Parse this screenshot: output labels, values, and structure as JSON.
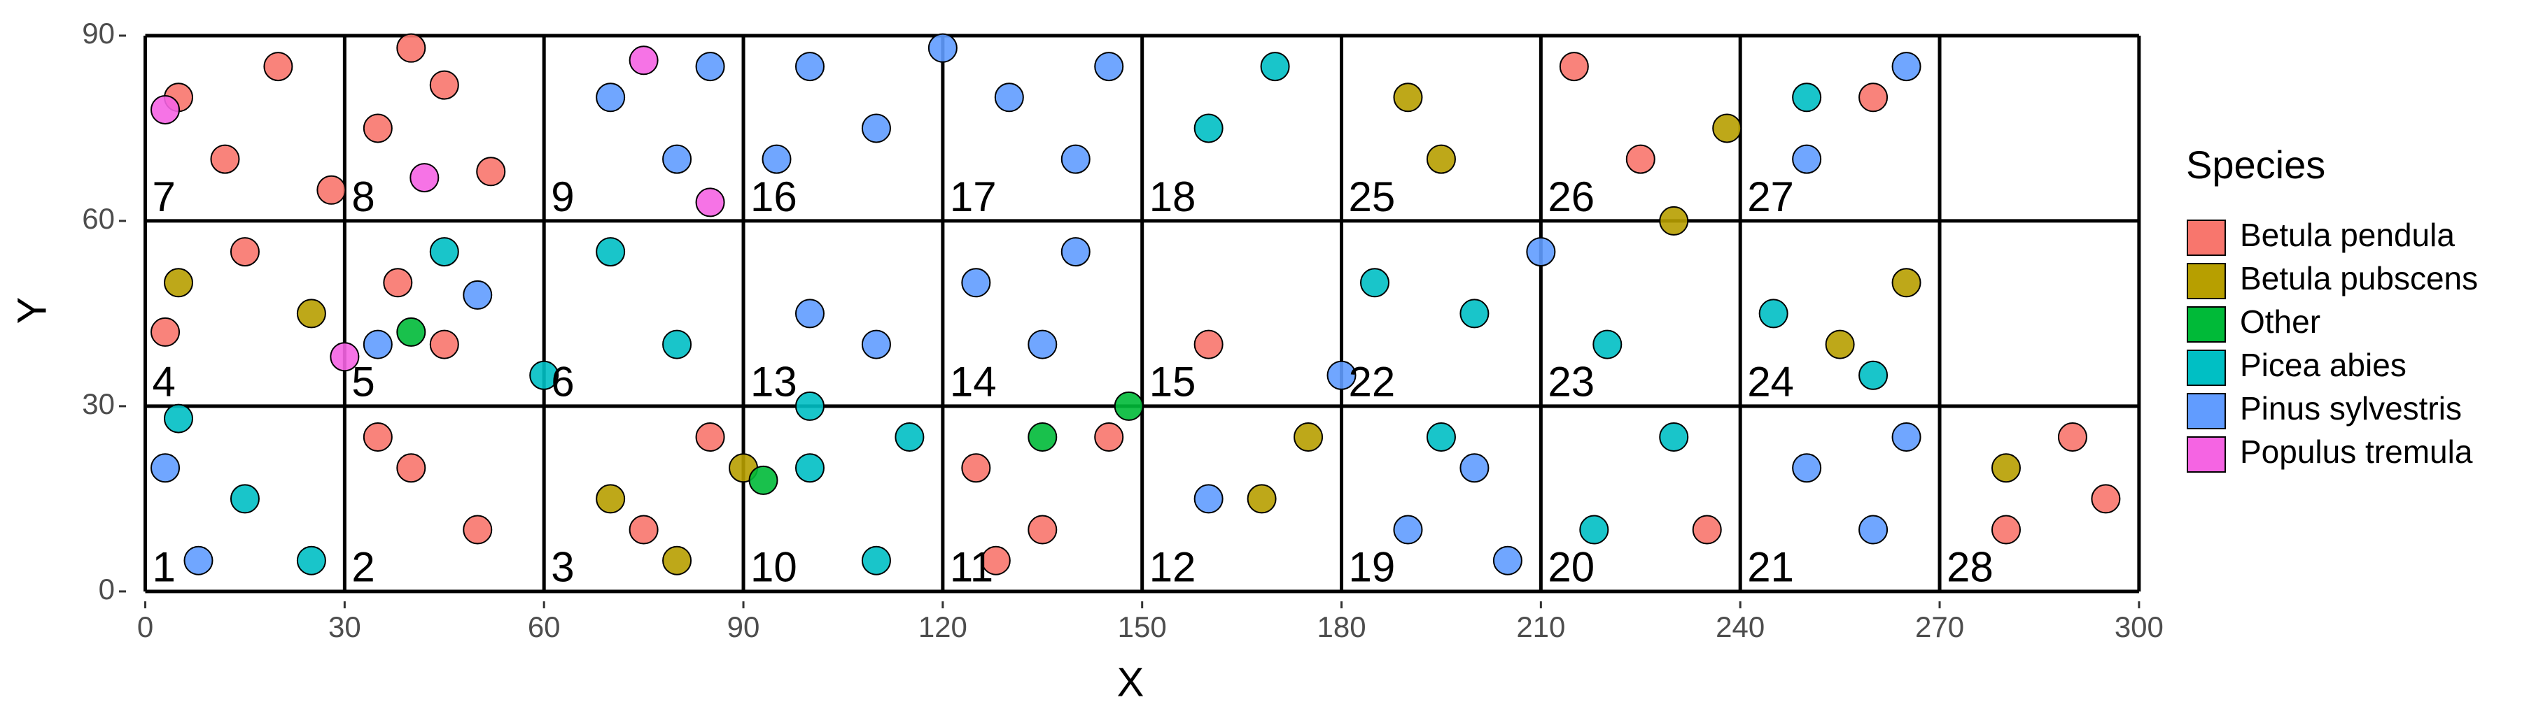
{
  "chart_data": {
    "type": "scatter",
    "x_label": "X",
    "y_label": "Y",
    "legend_title": "Species",
    "legend_position": "right",
    "grid": true,
    "grid_color": "#000000",
    "xlim": [
      -2.9,
      301.7
    ],
    "ylim": [
      -1.6,
      92.6
    ],
    "xticks": [
      0,
      30,
      60,
      90,
      120,
      150,
      180,
      210,
      240,
      270,
      300
    ],
    "yticks": [
      0,
      30,
      60,
      90
    ],
    "series": [
      {
        "name": "Betula pendula",
        "color": "#F8766D",
        "x": [
          5,
          12,
          20,
          28,
          35,
          45,
          52,
          40,
          15,
          3,
          38,
          45,
          40,
          50,
          35,
          75,
          85,
          125,
          135,
          145,
          128,
          280,
          290,
          295,
          215,
          225,
          260,
          235,
          160
        ],
        "y": [
          80,
          70,
          85,
          65,
          75,
          82,
          68,
          88,
          55,
          42,
          50,
          40,
          20,
          10,
          25,
          10,
          25,
          20,
          10,
          25,
          5,
          10,
          25,
          15,
          85,
          70,
          80,
          10,
          40
        ]
      },
      {
        "name": "Betula pubscens",
        "color": "#B79F00",
        "x": [
          190,
          195,
          230,
          265,
          255,
          168,
          175,
          70,
          80,
          90,
          25,
          5,
          280,
          238
        ],
        "y": [
          80,
          70,
          60,
          50,
          40,
          15,
          25,
          15,
          5,
          20,
          45,
          50,
          20,
          75
        ]
      },
      {
        "name": "Other",
        "color": "#00BA38",
        "x": [
          135,
          93,
          40,
          148
        ],
        "y": [
          25,
          18,
          42,
          30
        ]
      },
      {
        "name": "Picea abies",
        "color": "#00BFC4",
        "x": [
          5,
          15,
          25,
          70,
          80,
          60,
          100,
          110,
          100,
          160,
          170,
          185,
          200,
          220,
          230,
          245,
          260,
          250,
          218,
          195,
          45,
          115
        ],
        "y": [
          28,
          15,
          5,
          55,
          40,
          35,
          20,
          5,
          30,
          75,
          85,
          50,
          45,
          40,
          25,
          45,
          35,
          80,
          10,
          25,
          55,
          25
        ]
      },
      {
        "name": "Pinus sylvestris",
        "color": "#619CFF",
        "x": [
          3,
          8,
          70,
          80,
          85,
          95,
          100,
          110,
          120,
          130,
          140,
          145,
          100,
          110,
          125,
          135,
          140,
          160,
          190,
          200,
          205,
          250,
          260,
          265,
          250,
          265,
          35,
          50,
          180,
          210
        ],
        "y": [
          20,
          5,
          80,
          70,
          85,
          70,
          85,
          75,
          88,
          80,
          70,
          85,
          45,
          40,
          50,
          40,
          55,
          15,
          10,
          20,
          5,
          20,
          10,
          25,
          70,
          85,
          40,
          48,
          35,
          55
        ]
      },
      {
        "name": "Populus tremula",
        "color": "#F564E3",
        "x": [
          3,
          42,
          75,
          85,
          30
        ],
        "y": [
          78,
          67,
          86,
          63,
          38
        ]
      }
    ],
    "annotations": [
      {
        "text": "1",
        "x": 0,
        "y": 0
      },
      {
        "text": "2",
        "x": 30,
        "y": 0
      },
      {
        "text": "3",
        "x": 60,
        "y": 0
      },
      {
        "text": "10",
        "x": 90,
        "y": 0
      },
      {
        "text": "11",
        "x": 120,
        "y": 0
      },
      {
        "text": "12",
        "x": 150,
        "y": 0
      },
      {
        "text": "19",
        "x": 180,
        "y": 0
      },
      {
        "text": "20",
        "x": 210,
        "y": 0
      },
      {
        "text": "21",
        "x": 240,
        "y": 0
      },
      {
        "text": "28",
        "x": 270,
        "y": 0
      },
      {
        "text": "4",
        "x": 0,
        "y": 30
      },
      {
        "text": "5",
        "x": 30,
        "y": 30
      },
      {
        "text": "6",
        "x": 60,
        "y": 30
      },
      {
        "text": "13",
        "x": 90,
        "y": 30
      },
      {
        "text": "14",
        "x": 120,
        "y": 30
      },
      {
        "text": "15",
        "x": 150,
        "y": 30
      },
      {
        "text": "22",
        "x": 180,
        "y": 30
      },
      {
        "text": "23",
        "x": 210,
        "y": 30
      },
      {
        "text": "24",
        "x": 240,
        "y": 30
      },
      {
        "text": "7",
        "x": 0,
        "y": 60
      },
      {
        "text": "8",
        "x": 30,
        "y": 60
      },
      {
        "text": "9",
        "x": 60,
        "y": 60
      },
      {
        "text": "16",
        "x": 90,
        "y": 60
      },
      {
        "text": "17",
        "x": 120,
        "y": 60
      },
      {
        "text": "18",
        "x": 150,
        "y": 60
      },
      {
        "text": "25",
        "x": 180,
        "y": 60
      },
      {
        "text": "26",
        "x": 210,
        "y": 60
      },
      {
        "text": "27",
        "x": 240,
        "y": 60
      }
    ]
  }
}
